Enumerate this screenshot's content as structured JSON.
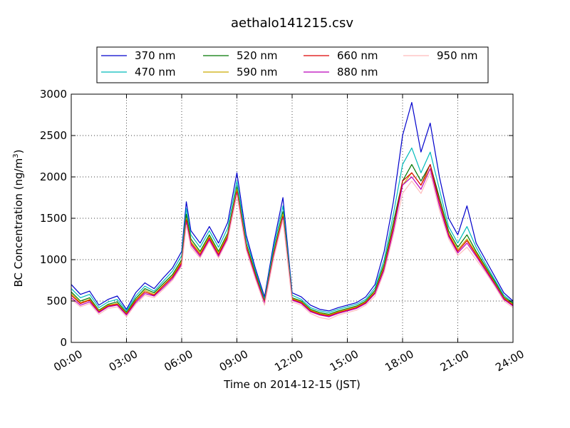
{
  "chart_data": {
    "type": "line",
    "title": "aethalo141215.csv",
    "xlabel": "Time on 2014-12-15 (JST)",
    "ylabel_main": "BC Concentration (ng/m",
    "ylabel_sup": "3",
    "ylabel_close": ")",
    "xlim": [
      0,
      24
    ],
    "ylim": [
      0,
      3000
    ],
    "grid": true,
    "legend_position": "top",
    "x_ticks": [
      0,
      3,
      6,
      9,
      12,
      15,
      18,
      21,
      24
    ],
    "x_tick_labels": [
      "00:00",
      "03:00",
      "06:00",
      "09:00",
      "12:00",
      "15:00",
      "18:00",
      "21:00",
      "24:00"
    ],
    "y_ticks": [
      0,
      500,
      1000,
      1500,
      2000,
      2500,
      3000
    ],
    "y_tick_labels": [
      "0",
      "500",
      "1000",
      "1500",
      "2000",
      "2500",
      "3000"
    ],
    "x": [
      0,
      0.5,
      1,
      1.5,
      2,
      2.5,
      3,
      3.5,
      4,
      4.5,
      5,
      5.5,
      6,
      6.25,
      6.5,
      7,
      7.5,
      8,
      8.5,
      9,
      9.5,
      10,
      10.5,
      11,
      11.5,
      12,
      12.5,
      13,
      13.5,
      14,
      14.5,
      15,
      15.5,
      16,
      16.5,
      17,
      17.5,
      18,
      18.5,
      19,
      19.5,
      20,
      20.5,
      21,
      21.5,
      22,
      22.5,
      23,
      23.5,
      24
    ],
    "series": [
      {
        "name": "370 nm",
        "color": "#0000cc",
        "values": [
          700,
          580,
          620,
          450,
          520,
          560,
          400,
          600,
          720,
          650,
          780,
          900,
          1100,
          1700,
          1350,
          1200,
          1400,
          1200,
          1450,
          2050,
          1300,
          900,
          550,
          1200,
          1750,
          600,
          550,
          450,
          400,
          380,
          420,
          450,
          480,
          550,
          700,
          1100,
          1700,
          2500,
          2900,
          2300,
          2650,
          2000,
          1500,
          1300,
          1650,
          1200,
          1000,
          800,
          600,
          500
        ]
      },
      {
        "name": "470 nm",
        "color": "#00bbbb",
        "values": [
          650,
          540,
          580,
          420,
          490,
          520,
          380,
          560,
          680,
          620,
          740,
          860,
          1050,
          1620,
          1300,
          1150,
          1350,
          1150,
          1380,
          1950,
          1250,
          870,
          520,
          1150,
          1650,
          570,
          520,
          420,
          380,
          360,
          400,
          430,
          460,
          520,
          660,
          1000,
          1550,
          2150,
          2350,
          2050,
          2300,
          1850,
          1400,
          1200,
          1400,
          1150,
          950,
          760,
          570,
          480
        ]
      },
      {
        "name": "520 nm",
        "color": "#007700",
        "values": [
          610,
          500,
          540,
          390,
          460,
          490,
          360,
          530,
          650,
          600,
          710,
          820,
          1000,
          1550,
          1250,
          1100,
          1300,
          1100,
          1320,
          1880,
          1200,
          840,
          500,
          1100,
          1580,
          540,
          500,
          400,
          360,
          340,
          380,
          410,
          440,
          500,
          630,
          950,
          1450,
          1950,
          2150,
          1950,
          2150,
          1750,
          1350,
          1150,
          1300,
          1100,
          920,
          740,
          550,
          470
        ]
      },
      {
        "name": "590 nm",
        "color": "#ccaa00",
        "values": [
          590,
          480,
          520,
          380,
          450,
          470,
          350,
          510,
          630,
          580,
          690,
          800,
          980,
          1500,
          1220,
          1080,
          1280,
          1080,
          1300,
          1850,
          1180,
          820,
          490,
          1080,
          1550,
          530,
          490,
          390,
          350,
          330,
          370,
          400,
          430,
          490,
          610,
          920,
          1400,
          1900,
          2050,
          1900,
          2100,
          1700,
          1320,
          1120,
          1250,
          1080,
          900,
          720,
          540,
          460
        ]
      },
      {
        "name": "660 nm",
        "color": "#dd0000",
        "values": [
          570,
          470,
          510,
          370,
          440,
          460,
          340,
          500,
          610,
          570,
          680,
          790,
          960,
          1480,
          1200,
          1060,
          1260,
          1060,
          1280,
          1820,
          1160,
          810,
          480,
          1060,
          1520,
          520,
          480,
          380,
          340,
          320,
          360,
          390,
          420,
          480,
          600,
          900,
          1380,
          1950,
          2050,
          1900,
          2150,
          1700,
          1300,
          1100,
          1230,
          1060,
          890,
          710,
          530,
          450
        ]
      },
      {
        "name": "880 nm",
        "color": "#bb00bb",
        "values": [
          540,
          450,
          490,
          360,
          430,
          450,
          330,
          480,
          590,
          560,
          660,
          770,
          940,
          1450,
          1180,
          1040,
          1240,
          1040,
          1260,
          1800,
          1140,
          790,
          470,
          1040,
          1500,
          510,
          470,
          370,
          330,
          310,
          350,
          380,
          410,
          470,
          590,
          880,
          1350,
          1900,
          2000,
          1850,
          2100,
          1650,
          1280,
          1080,
          1200,
          1040,
          870,
          700,
          520,
          440
        ]
      },
      {
        "name": "950 nm",
        "color": "#ffbbbb",
        "values": [
          520,
          430,
          470,
          340,
          410,
          430,
          310,
          460,
          570,
          540,
          640,
          750,
          920,
          1420,
          1150,
          1020,
          1220,
          1020,
          1240,
          1780,
          1120,
          770,
          450,
          1020,
          1480,
          490,
          450,
          350,
          300,
          280,
          330,
          360,
          390,
          450,
          560,
          850,
          1300,
          1800,
          1950,
          1800,
          2050,
          1600,
          1250,
          1050,
          1150,
          1000,
          850,
          680,
          500,
          420
        ]
      }
    ]
  }
}
